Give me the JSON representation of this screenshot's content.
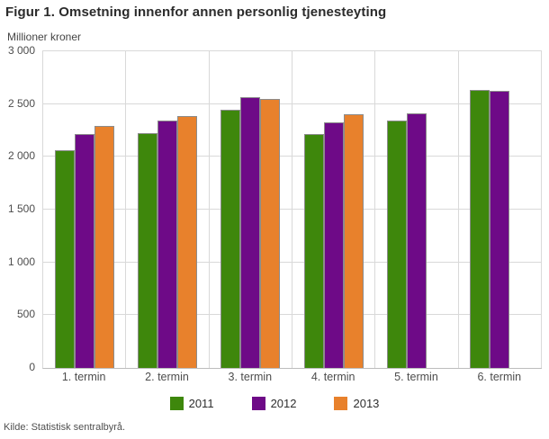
{
  "header": {
    "title": "Figur 1. Omsetning innenfor annen personlig tjenesteyting"
  },
  "chart": {
    "unit_label": "Millioner kroner"
  },
  "footer": {
    "source": "Kilde: Statistisk sentralbyrå."
  },
  "chart_data": {
    "type": "bar",
    "title": "Figur 1. Omsetning innenfor annen personlig tjenesteyting",
    "xlabel": "",
    "ylabel": "Millioner kroner",
    "ylim": [
      0,
      3000
    ],
    "ytick_step": 500,
    "yticks": [
      "0",
      "500",
      "1 000",
      "1 500",
      "2 000",
      "2 500",
      "3 000"
    ],
    "categories": [
      "1. termin",
      "2. termin",
      "3. termin",
      "4. termin",
      "5. termin",
      "6. termin"
    ],
    "series": [
      {
        "name": "2011",
        "color": "#3e870c",
        "values": [
          2060,
          2225,
          2450,
          2220,
          2340,
          2630
        ]
      },
      {
        "name": "2012",
        "color": "#6e0a87",
        "values": [
          2220,
          2340,
          2565,
          2330,
          2415,
          2625
        ]
      },
      {
        "name": "2013",
        "color": "#e8812c",
        "values": [
          2290,
          2390,
          2545,
          2405,
          null,
          null
        ]
      }
    ],
    "grid": true,
    "legend_position": "bottom",
    "colors": {
      "gridline": "#d9d9d9",
      "axis_line": "#bdbdbd",
      "bar_border": "#8c8c8c",
      "text": "#4d4d4d"
    }
  }
}
